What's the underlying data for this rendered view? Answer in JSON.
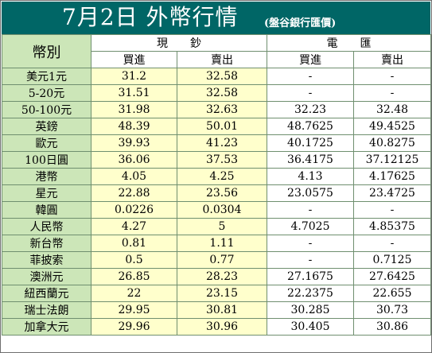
{
  "title": {
    "main": "7月2日 外幣行情",
    "sub": "(盤谷銀行匯價)"
  },
  "header": {
    "corner": "幣別",
    "group_cash": "現　　鈔",
    "group_wire": "電　　匯",
    "buy": "買進",
    "sell": "賣出"
  },
  "rows": [
    {
      "currency": "美元1元",
      "cash_buy": "31.2",
      "cash_sell": "32.58",
      "wire_buy": "-",
      "wire_sell": "-"
    },
    {
      "currency": "5-20元",
      "cash_buy": "31.51",
      "cash_sell": "32.58",
      "wire_buy": "-",
      "wire_sell": "-"
    },
    {
      "currency": "50-100元",
      "cash_buy": "31.98",
      "cash_sell": "32.63",
      "wire_buy": "32.23",
      "wire_sell": "32.48"
    },
    {
      "currency": "英鎊",
      "cash_buy": "48.39",
      "cash_sell": "50.01",
      "wire_buy": "48.7625",
      "wire_sell": "49.4525"
    },
    {
      "currency": "歐元",
      "cash_buy": "39.93",
      "cash_sell": "41.23",
      "wire_buy": "40.1725",
      "wire_sell": "40.8275"
    },
    {
      "currency": "100日圓",
      "cash_buy": "36.06",
      "cash_sell": "37.53",
      "wire_buy": "36.4175",
      "wire_sell": "37.12125"
    },
    {
      "currency": "港幣",
      "cash_buy": "4.05",
      "cash_sell": "4.25",
      "wire_buy": "4.13",
      "wire_sell": "4.17625"
    },
    {
      "currency": "星元",
      "cash_buy": "22.88",
      "cash_sell": "23.56",
      "wire_buy": "23.0575",
      "wire_sell": "23.4725"
    },
    {
      "currency": "韓圓",
      "cash_buy": "0.0226",
      "cash_sell": "0.0304",
      "wire_buy": "-",
      "wire_sell": "-"
    },
    {
      "currency": "人民幣",
      "cash_buy": "4.27",
      "cash_sell": "5",
      "wire_buy": "4.7025",
      "wire_sell": "4.85375"
    },
    {
      "currency": "新台幣",
      "cash_buy": "0.81",
      "cash_sell": "1.11",
      "wire_buy": "-",
      "wire_sell": "-"
    },
    {
      "currency": "菲披索",
      "cash_buy": "0.5",
      "cash_sell": "0.77",
      "wire_buy": "-",
      "wire_sell": "0.7125"
    },
    {
      "currency": "澳洲元",
      "cash_buy": "26.85",
      "cash_sell": "28.23",
      "wire_buy": "27.1675",
      "wire_sell": "27.6425"
    },
    {
      "currency": "紐西蘭元",
      "cash_buy": "22",
      "cash_sell": "23.15",
      "wire_buy": "22.2375",
      "wire_sell": "22.655"
    },
    {
      "currency": "瑞士法朗",
      "cash_buy": "29.95",
      "cash_sell": "30.81",
      "wire_buy": "30.285",
      "wire_sell": "30.73"
    },
    {
      "currency": "加拿大元",
      "cash_buy": "29.96",
      "cash_sell": "30.96",
      "wire_buy": "30.405",
      "wire_sell": "30.86"
    }
  ],
  "colors": {
    "title_bg": "#006666",
    "label_bg": "#cce6b8",
    "cash_bg": "#ffffcc",
    "wire_bg": "#ffffff"
  }
}
